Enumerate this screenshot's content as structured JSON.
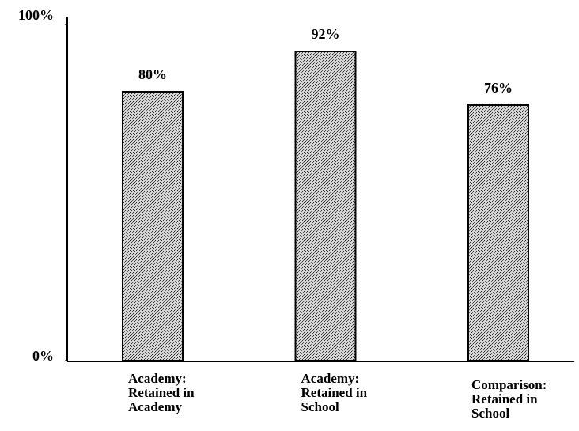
{
  "chart_data": {
    "type": "bar",
    "categories": [
      "Academy:\nRetained in\nAcademy",
      "Academy:\nRetained in\nSchool",
      "Comparison:\nRetained in\nSchool"
    ],
    "values": [
      80,
      92,
      76
    ],
    "value_labels": [
      "80%",
      "92%",
      "76%"
    ],
    "color": "#8a8a8a",
    "ylim": [
      0,
      100
    ],
    "yticks": [
      {
        "value": 0,
        "label": "0%"
      },
      {
        "value": 100,
        "label": "100%"
      }
    ]
  }
}
